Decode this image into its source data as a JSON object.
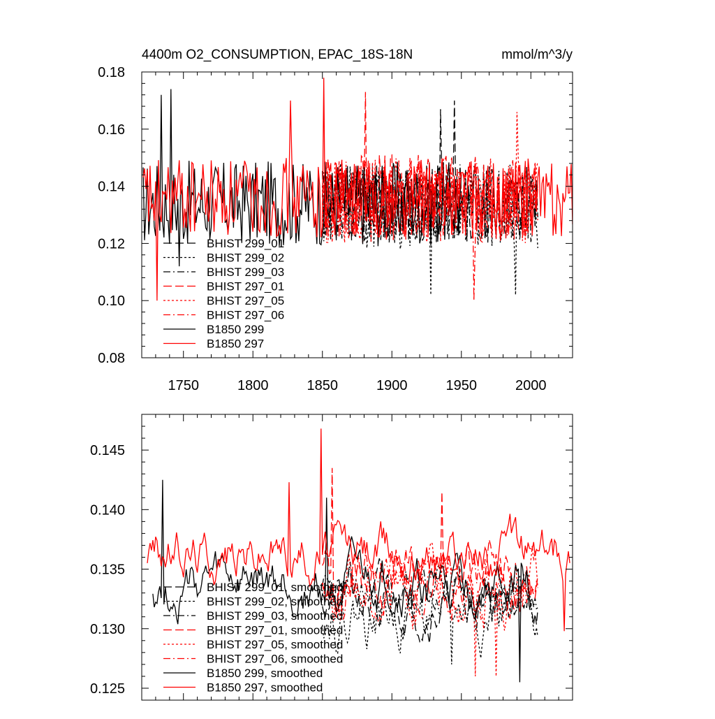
{
  "colors": {
    "black": "#000000",
    "red": "#ff0000"
  },
  "chart_data": [
    {
      "type": "line",
      "title_left": "4400m O2_CONSUMPTION, EPAC_18S-18N",
      "title_right": "mmol/m^3/y",
      "xlabel": "",
      "ylabel": "",
      "xlim": [
        1720,
        2030
      ],
      "ylim": [
        0.08,
        0.18
      ],
      "xticks": [
        1750,
        1800,
        1850,
        1900,
        1950,
        2000
      ],
      "xtick_labels": [
        "1750",
        "1800",
        "1850",
        "1900",
        "1950",
        "2000"
      ],
      "yticks": [
        0.08,
        0.1,
        0.12,
        0.14,
        0.16,
        0.18
      ],
      "ytick_labels": [
        "0.08",
        "0.10",
        "0.12",
        "0.14",
        "0.16",
        "0.18"
      ],
      "legend_position": "lower-left",
      "series": [
        {
          "name": "BHIST 299_01",
          "color": "#000000",
          "dash": "long-dash",
          "x_range": [
            1850,
            2005
          ],
          "mean": 0.134,
          "amplitude": 0.014,
          "seed": 11,
          "spikes": [
            [
              1935,
              0.167
            ],
            [
              1945,
              0.17
            ]
          ]
        },
        {
          "name": "BHIST 299_02",
          "color": "#000000",
          "dash": "dot",
          "x_range": [
            1850,
            2005
          ],
          "mean": 0.133,
          "amplitude": 0.015,
          "seed": 12,
          "spikes": [
            [
              1928,
              0.102
            ],
            [
              1989,
              0.102
            ]
          ]
        },
        {
          "name": "BHIST 299_03",
          "color": "#000000",
          "dash": "dash-dot",
          "x_range": [
            1850,
            2005
          ],
          "mean": 0.134,
          "amplitude": 0.014,
          "seed": 13,
          "spikes": []
        },
        {
          "name": "BHIST 297_01",
          "color": "#ff0000",
          "dash": "long-dash",
          "x_range": [
            1850,
            2005
          ],
          "mean": 0.136,
          "amplitude": 0.015,
          "seed": 14,
          "spikes": [
            [
              1881,
              0.173
            ]
          ]
        },
        {
          "name": "BHIST 297_05",
          "color": "#ff0000",
          "dash": "dot",
          "x_range": [
            1850,
            2005
          ],
          "mean": 0.135,
          "amplitude": 0.015,
          "seed": 15,
          "spikes": [
            [
              1990,
              0.166
            ]
          ]
        },
        {
          "name": "BHIST 297_06",
          "color": "#ff0000",
          "dash": "dash-dot",
          "x_range": [
            1850,
            2005
          ],
          "mean": 0.135,
          "amplitude": 0.015,
          "seed": 16,
          "spikes": [
            [
              1959,
              0.1
            ]
          ]
        },
        {
          "name": "B1850 299",
          "color": "#000000",
          "dash": "solid",
          "x_range": [
            1721,
            1950
          ],
          "mean": 0.134,
          "amplitude": 0.015,
          "seed": 17,
          "spikes": [
            [
              1734,
              0.172
            ],
            [
              1741,
              0.174
            ],
            [
              1747,
              0.112
            ]
          ]
        },
        {
          "name": "B1850 297",
          "color": "#ff0000",
          "dash": "solid",
          "x_range": [
            1721,
            2030
          ],
          "mean": 0.136,
          "amplitude": 0.014,
          "seed": 18,
          "spikes": [
            [
              1731,
              0.1
            ],
            [
              1851,
              0.178
            ],
            [
              1827,
              0.17
            ]
          ]
        }
      ]
    },
    {
      "type": "line",
      "xlim": [
        1720,
        2030
      ],
      "ylim": [
        0.124,
        0.148
      ],
      "xticks": [
        1750,
        1800,
        1850,
        1900,
        1950,
        2000
      ],
      "yticks": [
        0.125,
        0.13,
        0.135,
        0.14,
        0.145
      ],
      "ytick_labels": [
        "0.125",
        "0.130",
        "0.135",
        "0.140",
        "0.145"
      ],
      "legend_position": "lower-left",
      "series": [
        {
          "name": "BHIST 299_01, smoothed",
          "color": "#000000",
          "dash": "long-dash",
          "x_range": [
            1850,
            2005
          ],
          "mean": 0.1325,
          "amplitude": 0.0035,
          "seed": 21,
          "spikes": []
        },
        {
          "name": "BHIST 299_02, smoothed",
          "color": "#000000",
          "dash": "dot",
          "x_range": [
            1850,
            2005
          ],
          "mean": 0.1315,
          "amplitude": 0.004,
          "seed": 22,
          "spikes": [
            [
              1943,
              0.127
            ]
          ]
        },
        {
          "name": "BHIST 299_03, smoothed",
          "color": "#000000",
          "dash": "dash-dot",
          "x_range": [
            1850,
            2005
          ],
          "mean": 0.1325,
          "amplitude": 0.0035,
          "seed": 23,
          "spikes": []
        },
        {
          "name": "BHIST 297_01, smoothed",
          "color": "#ff0000",
          "dash": "long-dash",
          "x_range": [
            1850,
            2005
          ],
          "mean": 0.1345,
          "amplitude": 0.004,
          "seed": 24,
          "spikes": [
            [
              1857,
              0.1435
            ],
            [
              1936,
              0.1415
            ]
          ]
        },
        {
          "name": "BHIST 297_05, smoothed",
          "color": "#ff0000",
          "dash": "dot",
          "x_range": [
            1850,
            2005
          ],
          "mean": 0.1335,
          "amplitude": 0.0045,
          "seed": 25,
          "spikes": [
            [
              1960,
              0.126
            ],
            [
              1975,
              0.126
            ]
          ]
        },
        {
          "name": "BHIST 297_06, smoothed",
          "color": "#ff0000",
          "dash": "dash-dot",
          "x_range": [
            1850,
            2005
          ],
          "mean": 0.134,
          "amplitude": 0.004,
          "seed": 26,
          "spikes": []
        },
        {
          "name": "B1850 299, smoothed",
          "color": "#000000",
          "dash": "solid",
          "x_range": [
            1728,
            2000
          ],
          "mean": 0.1335,
          "amplitude": 0.0035,
          "seed": 27,
          "spikes": [
            [
              1735,
              0.1425
            ],
            [
              1853,
              0.141
            ],
            [
              1992,
              0.1255
            ]
          ]
        },
        {
          "name": "B1850 297, smoothed",
          "color": "#ff0000",
          "dash": "solid",
          "x_range": [
            1724,
            2028
          ],
          "mean": 0.1365,
          "amplitude": 0.0035,
          "seed": 28,
          "spikes": [
            [
              1849,
              0.1468
            ],
            [
              1826,
              0.1423
            ],
            [
              2024,
              0.1298
            ]
          ]
        }
      ]
    }
  ]
}
